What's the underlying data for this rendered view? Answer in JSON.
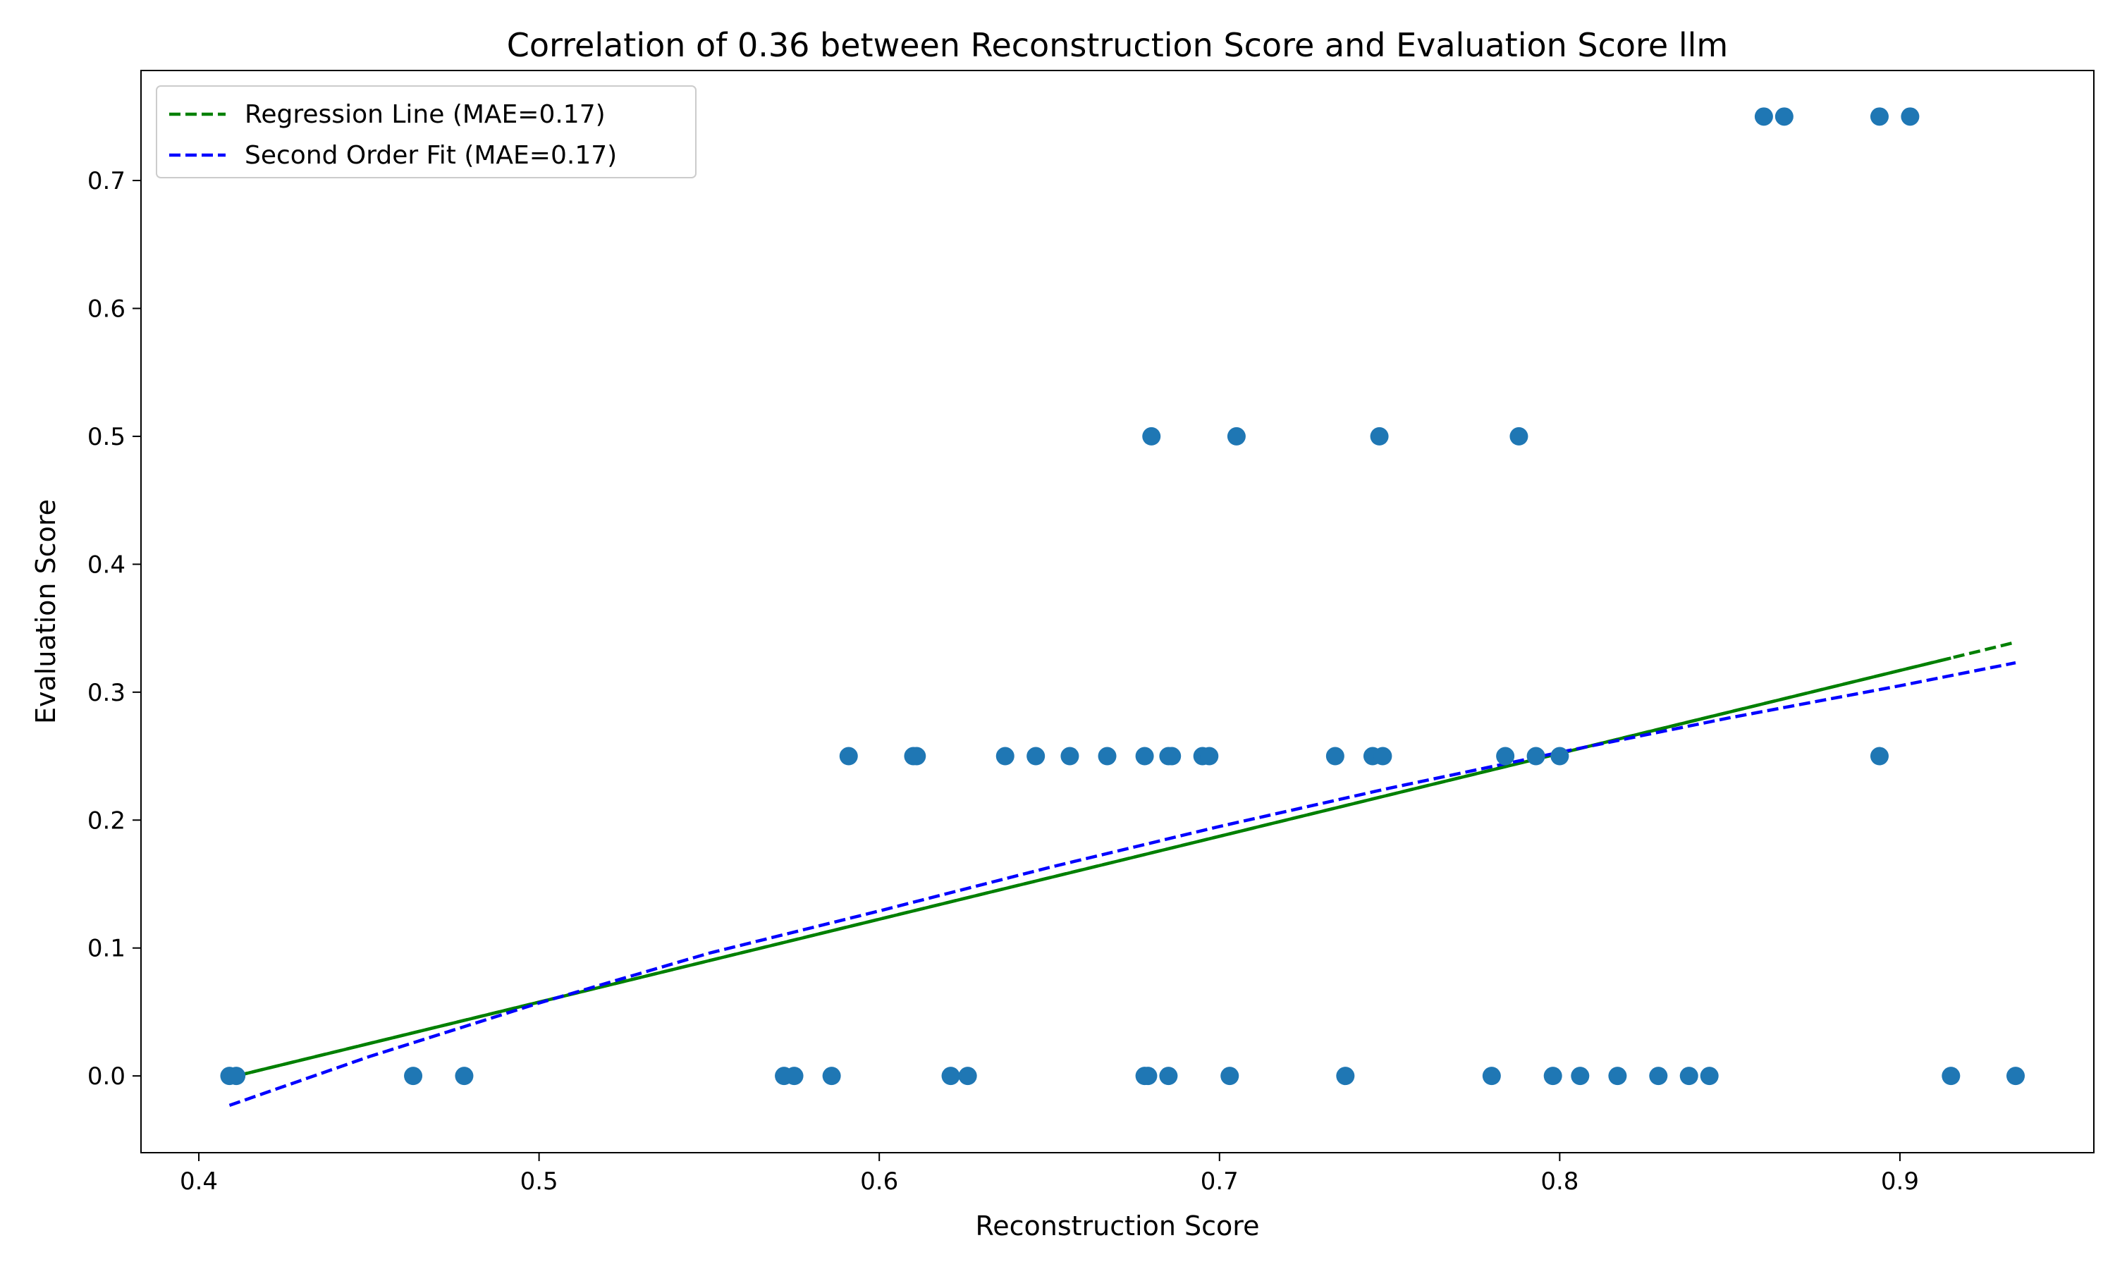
{
  "chart_data": {
    "type": "scatter",
    "title": "Correlation of 0.36 between Reconstruction Score and Evaluation Score llm",
    "xlabel": "Reconstruction Score",
    "ylabel": "Evaluation Score",
    "xlim": [
      0.383,
      0.957
    ],
    "ylim": [
      -0.06,
      0.786
    ],
    "xticks": [
      0.4,
      0.5,
      0.6,
      0.7,
      0.8,
      0.9
    ],
    "xtick_labels": [
      "0.4",
      "0.5",
      "0.6",
      "0.7",
      "0.8",
      "0.9"
    ],
    "yticks": [
      0.0,
      0.1,
      0.2,
      0.3,
      0.4,
      0.5,
      0.6,
      0.7
    ],
    "ytick_labels": [
      "0.0",
      "0.1",
      "0.2",
      "0.3",
      "0.4",
      "0.5",
      "0.6",
      "0.7"
    ],
    "grid": false,
    "legend_position": "top-left",
    "colors": {
      "points": "#1f77b4",
      "regression": "#008000",
      "second_order": "#0000ff"
    },
    "points": {
      "x": [
        0.409,
        0.411,
        0.463,
        0.478,
        0.572,
        0.575,
        0.586,
        0.621,
        0.626,
        0.678,
        0.679,
        0.685,
        0.703,
        0.737,
        0.78,
        0.798,
        0.806,
        0.817,
        0.829,
        0.838,
        0.844,
        0.915,
        0.934,
        0.591,
        0.61,
        0.611,
        0.637,
        0.646,
        0.656,
        0.667,
        0.678,
        0.685,
        0.686,
        0.695,
        0.697,
        0.734,
        0.745,
        0.748,
        0.784,
        0.793,
        0.8,
        0.894,
        0.68,
        0.705,
        0.747,
        0.788,
        0.86,
        0.866,
        0.894,
        0.903
      ],
      "y": [
        0.0,
        0.0,
        0.0,
        0.0,
        0.0,
        0.0,
        0.0,
        0.0,
        0.0,
        0.0,
        0.0,
        0.0,
        0.0,
        0.0,
        0.0,
        0.0,
        0.0,
        0.0,
        0.0,
        0.0,
        0.0,
        0.0,
        0.0,
        0.25,
        0.25,
        0.25,
        0.25,
        0.25,
        0.25,
        0.25,
        0.25,
        0.25,
        0.25,
        0.25,
        0.25,
        0.25,
        0.25,
        0.25,
        0.25,
        0.25,
        0.25,
        0.25,
        0.5,
        0.5,
        0.5,
        0.5,
        0.75,
        0.75,
        0.75,
        0.75
      ]
    },
    "lines": [
      {
        "name": "Regression Line (MAE=0.17)",
        "style": "dashed",
        "color": "#008000",
        "x": [
          0.411,
          0.934
        ],
        "y": [
          0.0,
          0.339
        ],
        "solid_overlay_x": [
          0.411,
          0.915
        ]
      },
      {
        "name": "Second Order Fit (MAE=0.17)",
        "style": "dashed",
        "color": "#0000ff",
        "x": [
          0.409,
          0.45,
          0.5,
          0.55,
          0.6,
          0.65,
          0.7,
          0.75,
          0.8,
          0.85,
          0.9,
          0.934
        ],
        "y": [
          -0.023,
          0.015,
          0.057,
          0.096,
          0.129,
          0.163,
          0.195,
          0.225,
          0.253,
          0.28,
          0.305,
          0.323
        ]
      }
    ]
  }
}
